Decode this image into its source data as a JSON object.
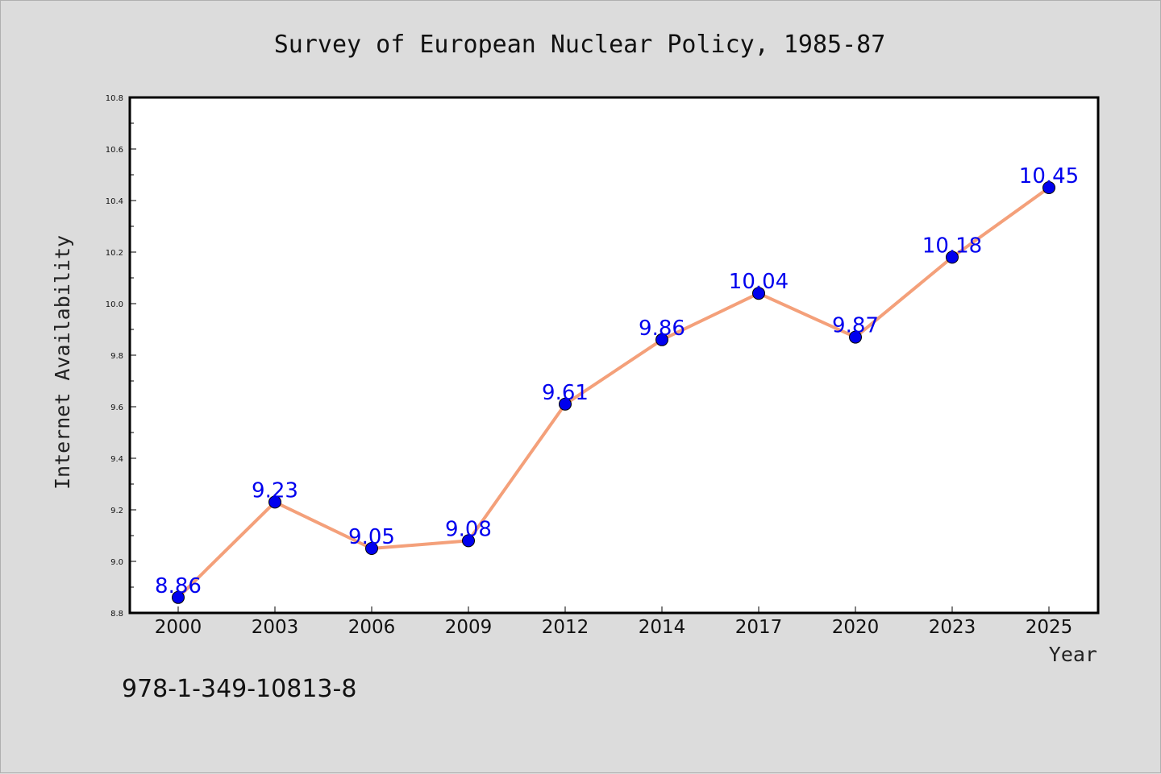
{
  "chart_data": {
    "type": "line",
    "title": "Survey of European Nuclear Policy, 1985-87",
    "xlabel": "Year",
    "ylabel": "Internet Availability",
    "categories": [
      "2000",
      "2003",
      "2006",
      "2009",
      "2012",
      "2014",
      "2017",
      "2020",
      "2023",
      "2025"
    ],
    "series": [
      {
        "values": [
          8.86,
          9.23,
          9.05,
          9.08,
          9.61,
          9.86,
          10.04,
          9.87,
          10.18,
          10.45
        ],
        "data_labels": [
          "8.86",
          "9.23",
          "9.05",
          "9.08",
          "9.61",
          "9.86",
          "10.04",
          "9.87",
          "10.18",
          "10.45"
        ],
        "line_color": "#f4a07a",
        "marker_color": "#0000ee"
      }
    ],
    "ylim": [
      8.8,
      10.8
    ],
    "yticks": [
      "8.8",
      "9.0",
      "9.2",
      "9.4",
      "9.6",
      "9.8",
      "10.0",
      "10.2",
      "10.4",
      "10.6",
      "10.8"
    ],
    "grid": false,
    "legend": "none",
    "plot_background": "#ffffff",
    "page_background": "#dcdcdc"
  },
  "footer": {
    "isbn": "978-1-349-10813-8"
  }
}
